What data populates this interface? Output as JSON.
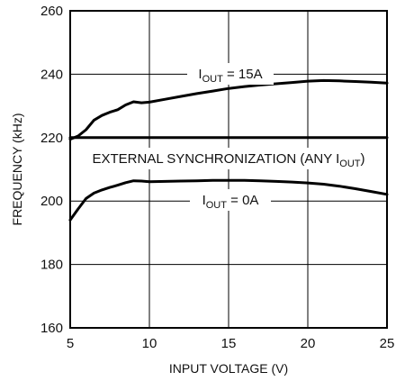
{
  "chart_data": {
    "type": "line",
    "xlabel": "INPUT VOLTAGE (V)",
    "ylabel": "FREQUENCY (kHz)",
    "xlim": [
      5,
      25
    ],
    "ylim": [
      160,
      260
    ],
    "x_ticks": [
      "5",
      "10",
      "15",
      "20",
      "25"
    ],
    "y_ticks": [
      "160",
      "180",
      "200",
      "220",
      "240",
      "260"
    ],
    "grid": true,
    "series": [
      {
        "id": "iout15",
        "label_main": "I",
        "label_sub": "OUT",
        "label_rest": " = 15A",
        "x": [
          5,
          5.5,
          6,
          6.5,
          7,
          7.5,
          8,
          8.5,
          9,
          9.5,
          10,
          11,
          12,
          13,
          14,
          15,
          16,
          17,
          18,
          19,
          20,
          21,
          22,
          23,
          24,
          25
        ],
        "y": [
          219.5,
          220.5,
          222.5,
          225.5,
          227,
          228,
          228.8,
          230.3,
          231.3,
          231,
          231.2,
          232.1,
          233.0,
          233.9,
          234.7,
          235.5,
          236.1,
          236.6,
          237.0,
          237.4,
          237.8,
          238.0,
          237.9,
          237.7,
          237.5,
          237.2
        ]
      },
      {
        "id": "ext_sync",
        "label_main": "EXTERNAL SYNCHRONIZATION (ANY I",
        "label_sub": "OUT",
        "label_rest": ")",
        "x": [
          5,
          25
        ],
        "y": [
          220,
          220
        ]
      },
      {
        "id": "iout0",
        "label_main": "I",
        "label_sub": "OUT",
        "label_rest": " = 0A",
        "x": [
          5,
          5.5,
          6,
          6.5,
          7,
          7.5,
          8,
          8.5,
          9,
          9.5,
          10,
          11,
          12,
          13,
          14,
          15,
          16,
          17,
          18,
          19,
          20,
          21,
          22,
          23,
          24,
          25
        ],
        "y": [
          194,
          197.5,
          200.8,
          202.5,
          203.5,
          204.3,
          205.0,
          205.8,
          206.4,
          206.3,
          206.1,
          206.2,
          206.3,
          206.4,
          206.5,
          206.5,
          206.5,
          206.4,
          206.2,
          206.0,
          205.7,
          205.3,
          204.7,
          203.9,
          203.0,
          202.1
        ]
      }
    ]
  }
}
